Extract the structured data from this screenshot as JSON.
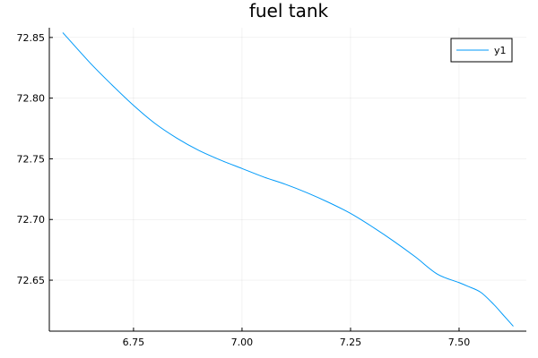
{
  "chart_data": {
    "type": "line",
    "title": "fuel tank",
    "xlabel": "",
    "ylabel": "",
    "xlim": [
      6.556,
      7.655
    ],
    "ylim": [
      72.608,
      72.858
    ],
    "grid": true,
    "legend": "top-right",
    "x_ticks": [
      6.75,
      7.0,
      7.25,
      7.5
    ],
    "x_tick_labels": [
      "6.75",
      "7.00",
      "7.25",
      "7.50"
    ],
    "y_ticks": [
      72.65,
      72.7,
      72.75,
      72.8,
      72.85
    ],
    "y_tick_labels": [
      "72.65",
      "72.70",
      "72.75",
      "72.80",
      "72.85"
    ],
    "series": [
      {
        "name": "y1",
        "color": "#009af9",
        "x": [
          6.587,
          6.65,
          6.7,
          6.75,
          6.8,
          6.85,
          6.9,
          6.95,
          7.0,
          7.05,
          7.1,
          7.15,
          7.2,
          7.25,
          7.3,
          7.35,
          7.4,
          7.45,
          7.5,
          7.52,
          7.55,
          7.58,
          7.6,
          7.625
        ],
        "y": [
          72.854,
          72.829,
          72.811,
          72.794,
          72.779,
          72.767,
          72.757,
          72.749,
          72.742,
          72.735,
          72.729,
          72.722,
          72.714,
          72.705,
          72.694,
          72.682,
          72.669,
          72.655,
          72.648,
          72.645,
          72.64,
          72.63,
          72.622,
          72.612
        ]
      }
    ]
  }
}
